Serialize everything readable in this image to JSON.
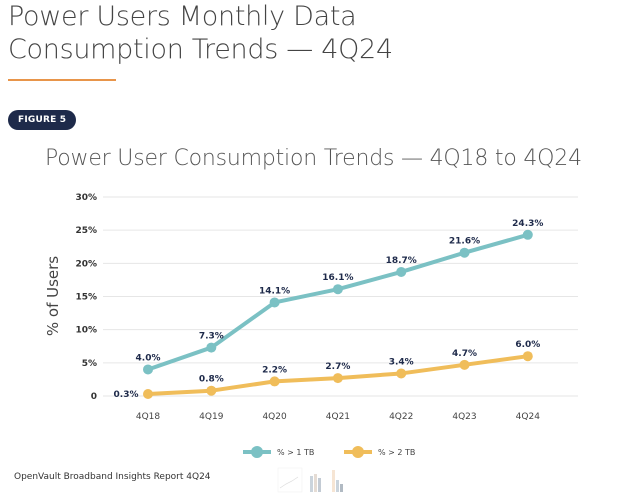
{
  "page": {
    "title_line1": "Power Users Monthly Data",
    "title_line2": "Consumption Trends — 4Q24",
    "figure_badge": "FIGURE 5",
    "footer_text": "OpenVault Broadband Insights Report 4Q24",
    "accent_rule_color": "#e8954a",
    "badge_color": "#1e2a4a"
  },
  "chart_data": {
    "type": "line",
    "title": "Power User Consumption Trends  — 4Q18 to 4Q24",
    "xlabel": "",
    "ylabel": "% of Users",
    "ylim": [
      0,
      30
    ],
    "yticks": [
      0,
      5,
      10,
      15,
      20,
      25,
      30
    ],
    "ytick_labels": [
      "0",
      "5%",
      "10%",
      "15%",
      "20%",
      "25%",
      "30%"
    ],
    "grid": true,
    "legend_position": "bottom-center",
    "categories": [
      "4Q18",
      "4Q19",
      "4Q20",
      "4Q21",
      "4Q22",
      "4Q23",
      "4Q24"
    ],
    "series": [
      {
        "name": "% > 1 TB",
        "color": "#7bc1c4",
        "values": [
          4.0,
          7.3,
          14.1,
          16.1,
          18.7,
          21.6,
          24.3
        ],
        "labels": [
          "4.0%",
          "7.3%",
          "14.1%",
          "16.1%",
          "18.7%",
          "21.6%",
          "24.3%"
        ]
      },
      {
        "name": "% > 2 TB",
        "color": "#f0bd5a",
        "values": [
          0.3,
          0.8,
          2.2,
          2.7,
          3.4,
          4.7,
          6.0
        ],
        "labels": [
          "0.3%",
          "0.8%",
          "2.2%",
          "2.7%",
          "3.4%",
          "4.7%",
          "6.0%"
        ]
      }
    ],
    "label_color": "#1e2a4a"
  }
}
